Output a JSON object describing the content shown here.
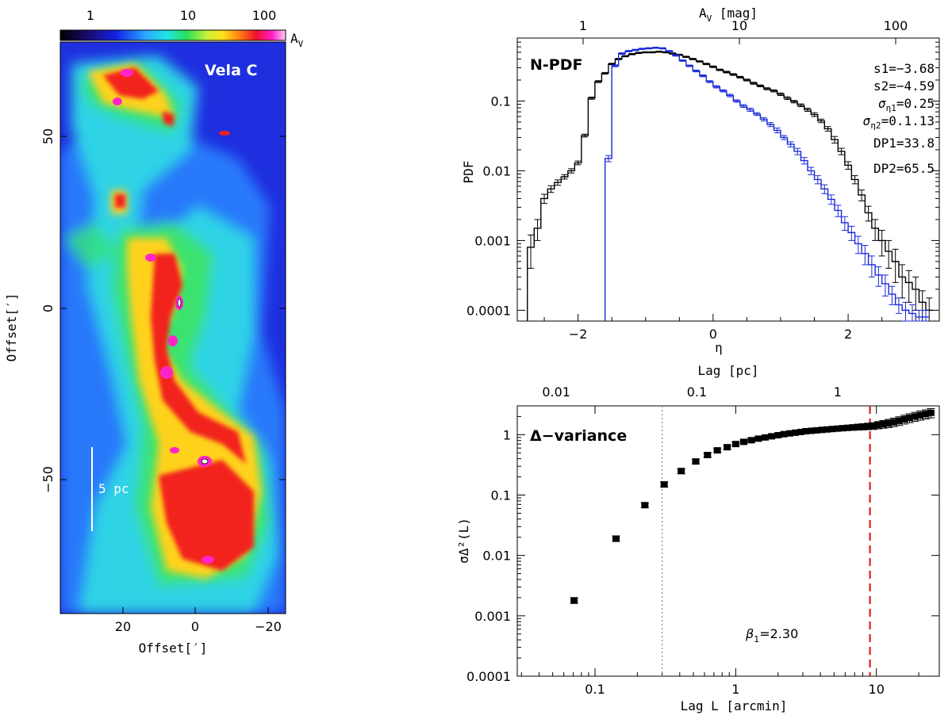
{
  "map": {
    "region_label": "Vela C",
    "scale_label": "5 pc",
    "colorbar_ticks": [
      "1",
      "10",
      "100"
    ],
    "colorbar_unit": "A",
    "colorbar_unit_sub": "V",
    "x_label": "Offset[′]",
    "y_label": "Offset[′]",
    "x_ticks": [
      "20",
      "0",
      "−20"
    ],
    "y_ticks": [
      "50",
      "0",
      "−50"
    ]
  },
  "chart_data": [
    {
      "type": "line",
      "title": "N-PDF",
      "xlabel": "η",
      "ylabel": "PDF",
      "top_axis_label": "A",
      "top_axis_label_sub": "V",
      "top_axis_unit": " [mag]",
      "top_ticks": [
        "1",
        "10",
        "100"
      ],
      "x_ticks": [
        "−2",
        "0",
        "2"
      ],
      "y_ticks": [
        "0.1",
        "0.01",
        "0.001",
        "0.0001"
      ],
      "xlim": [
        -2.9,
        3.35
      ],
      "ylim": [
        7e-05,
        0.8
      ],
      "yscale": "log",
      "annotations": [
        {
          "text": "s1=−3.68"
        },
        {
          "text": "s2=−4.59"
        },
        {
          "text": "ση1=0.25",
          "sym": "σ",
          "sub": "η1",
          "rest": "=0.25"
        },
        {
          "text": "ση2=0.1.13",
          "sym": "σ",
          "sub": "η2",
          "rest": "=0.1.13"
        },
        {
          "text": "DP1=33.8"
        },
        {
          "text": "DP2=65.5"
        }
      ],
      "series": [
        {
          "name": "black",
          "color": "#000000",
          "x": [
            -2.7,
            -2.6,
            -2.5,
            -2.4,
            -2.3,
            -2.2,
            -2.1,
            -2.0,
            -1.9,
            -1.8,
            -1.7,
            -1.6,
            -1.5,
            -1.4,
            -1.3,
            -1.2,
            -1.1,
            -1.0,
            -0.9,
            -0.8,
            -0.7,
            -0.6,
            -0.5,
            -0.4,
            -0.3,
            -0.2,
            -0.1,
            0.0,
            0.1,
            0.2,
            0.3,
            0.4,
            0.5,
            0.6,
            0.7,
            0.8,
            0.9,
            1.0,
            1.1,
            1.2,
            1.3,
            1.4,
            1.5,
            1.6,
            1.7,
            1.8,
            1.9,
            2.0,
            2.1,
            2.2,
            2.3,
            2.4,
            2.5,
            2.6,
            2.7,
            2.8,
            2.9,
            3.0,
            3.1,
            3.2
          ],
          "values": [
            0.0008,
            0.0015,
            0.004,
            0.0055,
            0.0068,
            0.0082,
            0.01,
            0.013,
            0.032,
            0.11,
            0.19,
            0.25,
            0.34,
            0.4,
            0.44,
            0.47,
            0.49,
            0.5,
            0.5,
            0.51,
            0.5,
            0.48,
            0.46,
            0.43,
            0.4,
            0.37,
            0.34,
            0.31,
            0.28,
            0.26,
            0.24,
            0.22,
            0.2,
            0.18,
            0.165,
            0.15,
            0.14,
            0.125,
            0.11,
            0.098,
            0.087,
            0.075,
            0.064,
            0.052,
            0.04,
            0.028,
            0.019,
            0.012,
            0.0075,
            0.0045,
            0.0025,
            0.0015,
            0.001,
            0.0007,
            0.0005,
            0.0003,
            0.00025,
            0.0002,
            0.00013,
            0.0001
          ],
          "err": [
            0.0004,
            0.0005,
            0.0006,
            0.0006,
            0.0006,
            0.0006,
            0.0007,
            0.0008,
            0.0015,
            0.004,
            0.006,
            0.007,
            0.008,
            0.009,
            0.009,
            0.01,
            0.01,
            0.01,
            0.01,
            0.01,
            0.01,
            0.01,
            0.009,
            0.009,
            0.009,
            0.008,
            0.008,
            0.008,
            0.007,
            0.007,
            0.007,
            0.006,
            0.006,
            0.006,
            0.005,
            0.005,
            0.005,
            0.005,
            0.005,
            0.004,
            0.004,
            0.004,
            0.004,
            0.003,
            0.003,
            0.003,
            0.002,
            0.0015,
            0.001,
            0.0008,
            0.0006,
            0.0005,
            0.0004,
            0.0003,
            0.00025,
            0.00015,
            0.00012,
            0.0001,
            6e-05,
            5e-05
          ]
        },
        {
          "name": "blue",
          "color": "#1a2bd8",
          "x": [
            -1.55,
            -1.45,
            -1.35,
            -1.25,
            -1.15,
            -1.05,
            -0.95,
            -0.85,
            -0.75,
            -0.65,
            -0.55,
            -0.45,
            -0.35,
            -0.25,
            -0.15,
            -0.05,
            0.05,
            0.15,
            0.25,
            0.35,
            0.45,
            0.55,
            0.65,
            0.75,
            0.85,
            0.95,
            1.05,
            1.15,
            1.25,
            1.35,
            1.45,
            1.55,
            1.65,
            1.75,
            1.85,
            1.95,
            2.05,
            2.15,
            2.25,
            2.35,
            2.45,
            2.55,
            2.65,
            2.75,
            2.85,
            2.95,
            3.05,
            3.15
          ],
          "values": [
            0.015,
            0.32,
            0.48,
            0.52,
            0.54,
            0.56,
            0.57,
            0.58,
            0.57,
            0.52,
            0.45,
            0.38,
            0.32,
            0.27,
            0.23,
            0.19,
            0.16,
            0.14,
            0.12,
            0.1,
            0.085,
            0.075,
            0.065,
            0.055,
            0.046,
            0.038,
            0.03,
            0.024,
            0.019,
            0.014,
            0.01,
            0.0075,
            0.0055,
            0.0039,
            0.0027,
            0.0018,
            0.0013,
            0.0009,
            0.00065,
            0.00045,
            0.00032,
            0.00024,
            0.00017,
            0.00012,
            0.0001,
            9e-05,
            8e-05,
            8e-05
          ],
          "err": [
            0.0015,
            0.01,
            0.012,
            0.012,
            0.012,
            0.012,
            0.012,
            0.012,
            0.012,
            0.011,
            0.01,
            0.009,
            0.008,
            0.008,
            0.007,
            0.006,
            0.006,
            0.005,
            0.005,
            0.004,
            0.004,
            0.004,
            0.003,
            0.003,
            0.003,
            0.003,
            0.002,
            0.002,
            0.002,
            0.0015,
            0.0012,
            0.001,
            0.0008,
            0.0006,
            0.0005,
            0.0004,
            0.0003,
            0.00025,
            0.0002,
            0.00015,
            0.0001,
            8e-05,
            5e-05,
            3e-05,
            3e-05,
            3e-05,
            2e-05,
            2e-05
          ]
        }
      ]
    },
    {
      "type": "scatter",
      "title": "Δ−variance",
      "xlabel": "Lag L [arcmin]",
      "ylabel": "σΔ²(L)",
      "top_axis_label": "Lag [pc]",
      "top_ticks": [
        "0.01",
        "0.1",
        "1"
      ],
      "x_ticks": [
        "0.1",
        "1",
        "10"
      ],
      "y_ticks": [
        "1",
        "0.1",
        "0.01",
        "0.001",
        "0.0001"
      ],
      "xscale": "log",
      "yscale": "log",
      "xlim": [
        0.028,
        28
      ],
      "ylim": [
        0.0001,
        3
      ],
      "annotation": "β1=2.30",
      "annotation_sym": "β",
      "annotation_sub": "1",
      "annotation_rest": "=2.30",
      "vlines": [
        {
          "x": 0.3,
          "style": "dotted",
          "color": "#888888"
        },
        {
          "x": 9.0,
          "style": "dashed",
          "color": "#e02020"
        }
      ],
      "points": {
        "x": [
          0.071,
          0.141,
          0.226,
          0.31,
          0.41,
          0.52,
          0.63,
          0.74,
          0.87,
          1.0,
          1.14,
          1.29,
          1.45,
          1.62,
          1.8,
          2.0,
          2.2,
          2.42,
          2.65,
          2.9,
          3.15,
          3.45,
          3.75,
          4.1,
          4.45,
          4.85,
          5.3,
          5.75,
          6.25,
          6.8,
          7.4,
          8.0,
          8.7,
          9.5,
          10.3,
          11.2,
          12.2,
          13.3,
          14.5,
          15.8,
          17.2,
          18.8,
          20.5,
          22.4,
          24.4
        ],
        "y": [
          0.0018,
          0.019,
          0.068,
          0.15,
          0.25,
          0.36,
          0.46,
          0.55,
          0.62,
          0.7,
          0.76,
          0.81,
          0.86,
          0.9,
          0.94,
          0.98,
          1.02,
          1.05,
          1.08,
          1.11,
          1.14,
          1.16,
          1.18,
          1.2,
          1.22,
          1.24,
          1.26,
          1.28,
          1.3,
          1.32,
          1.34,
          1.36,
          1.38,
          1.4,
          1.45,
          1.5,
          1.55,
          1.62,
          1.7,
          1.8,
          1.9,
          2.0,
          2.1,
          2.2,
          2.3
        ],
        "err": [
          0.0002,
          0.002,
          0.006,
          0.015,
          0.025,
          0.03,
          0.035,
          0.04,
          0.045,
          0.05,
          0.05,
          0.05,
          0.05,
          0.05,
          0.05,
          0.06,
          0.06,
          0.06,
          0.07,
          0.07,
          0.08,
          0.08,
          0.09,
          0.09,
          0.1,
          0.1,
          0.11,
          0.12,
          0.13,
          0.14,
          0.15,
          0.16,
          0.17,
          0.18,
          0.2,
          0.22,
          0.24,
          0.26,
          0.28,
          0.3,
          0.32,
          0.34,
          0.36,
          0.38,
          0.4
        ]
      }
    }
  ]
}
